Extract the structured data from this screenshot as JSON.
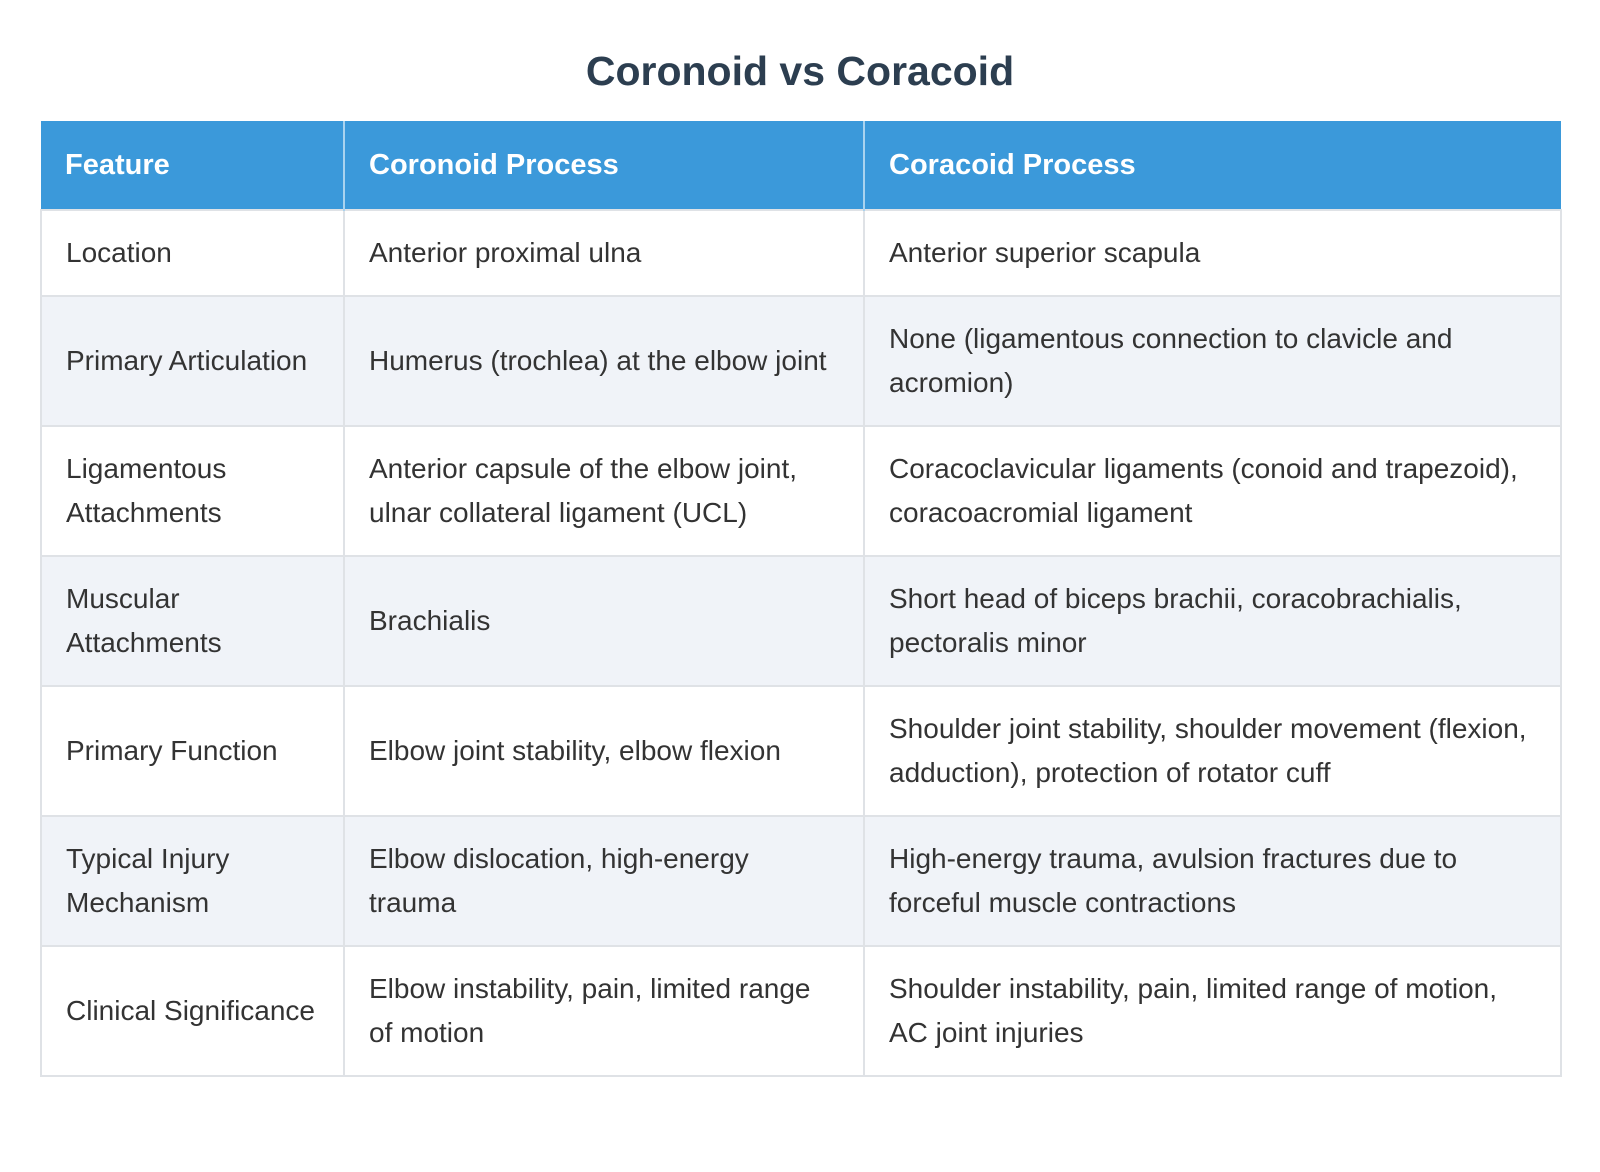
{
  "title": "Coronoid vs Coracoid",
  "colors": {
    "header_bg": "#3b99da",
    "header_text": "#ffffff",
    "header_divider": "#a9d3ef",
    "title_text": "#2c3e50",
    "row_bg": "#ffffff",
    "row_alt_bg": "#f0f3f8",
    "border": "#dfe2e6",
    "cell_text": "#333333"
  },
  "table": {
    "columns": [
      "Feature",
      "Coronoid Process",
      "Coracoid Process"
    ],
    "rows": [
      {
        "feature": "Location",
        "coronoid": "Anterior proximal ulna",
        "coracoid": "Anterior superior scapula"
      },
      {
        "feature": "Primary Articulation",
        "coronoid": "Humerus (trochlea) at the elbow joint",
        "coracoid": "None (ligamentous connection to clavicle and acromion)"
      },
      {
        "feature": "Ligamentous Attachments",
        "coronoid": "Anterior capsule of the elbow joint, ulnar collateral ligament (UCL)",
        "coracoid": "Coracoclavicular ligaments (conoid and trapezoid), coracoacromial ligament"
      },
      {
        "feature": "Muscular Attachments",
        "coronoid": "Brachialis",
        "coracoid": "Short head of biceps brachii, coracobrachialis, pectoralis minor"
      },
      {
        "feature": "Primary Function",
        "coronoid": "Elbow joint stability, elbow flexion",
        "coracoid": "Shoulder joint stability, shoulder movement (flexion, adduction), protection of rotator cuff"
      },
      {
        "feature": "Typical Injury Mechanism",
        "coronoid": "Elbow dislocation, high-energy trauma",
        "coracoid": "High-energy trauma, avulsion fractures due to forceful muscle contractions"
      },
      {
        "feature": "Clinical Significance",
        "coronoid": "Elbow instability, pain, limited range of motion",
        "coracoid": "Shoulder instability, pain, limited range of motion, AC joint injuries"
      }
    ]
  }
}
